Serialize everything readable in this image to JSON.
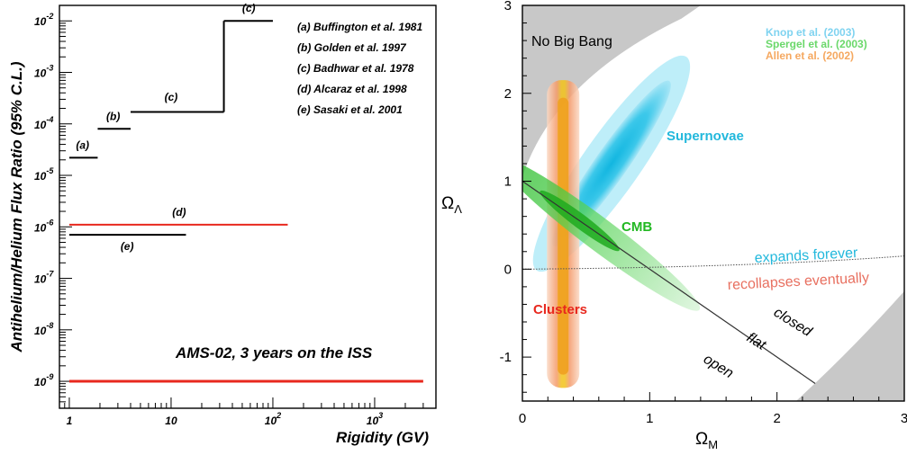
{
  "chart_data": [
    {
      "type": "line",
      "title": "",
      "xlabel": "Rigidity (GV)",
      "ylabel": "Antihelium/Helium Flux Ratio (95% C.L.)",
      "x_scale": "log",
      "y_scale": "log",
      "xlim": [
        0.8,
        4000
      ],
      "ylim": [
        3e-10,
        0.02
      ],
      "x_ticks": [
        {
          "value": 1,
          "label": "1"
        },
        {
          "value": 10,
          "label": "10"
        },
        {
          "value": 100,
          "label": "10",
          "exp": "2"
        },
        {
          "value": 1000,
          "label": "10",
          "exp": "3"
        }
      ],
      "y_ticks": [
        {
          "value": 1e-09,
          "label": "10",
          "exp": "-9"
        },
        {
          "value": 1e-08,
          "label": "10",
          "exp": "-8"
        },
        {
          "value": 1e-07,
          "label": "10",
          "exp": "-7"
        },
        {
          "value": 1e-06,
          "label": "10",
          "exp": "-6"
        },
        {
          "value": 1e-05,
          "label": "10",
          "exp": "-5"
        },
        {
          "value": 0.0001,
          "label": "10",
          "exp": "-4"
        },
        {
          "value": 0.001,
          "label": "10",
          "exp": "-3"
        },
        {
          "value": 0.01,
          "label": "10",
          "exp": "-2"
        }
      ],
      "legend": {
        "placement": "top-right",
        "entries": [
          "(a) Buffington et al. 1981",
          "(b) Golden et al. 1997",
          "(c) Badhwar et al. 1978",
          "(d) Alcaraz et al. 1998",
          "(e) Sasaki et al. 2001"
        ]
      },
      "series": [
        {
          "label": "(a)",
          "color": "#000000",
          "segments": [
            {
              "x": [
                1.0,
                1.9
              ],
              "y": 2.2e-05
            }
          ]
        },
        {
          "label": "(b)",
          "color": "#000000",
          "segments": [
            {
              "x": [
                1.9,
                4.0
              ],
              "y": 8e-05
            }
          ]
        },
        {
          "label": "(c)",
          "color": "#000000",
          "segments": [
            {
              "x": [
                4.0,
                33
              ],
              "y": 0.00017
            },
            {
              "x": [
                33,
                33
              ],
              "y_range": [
                0.00017,
                0.01
              ]
            },
            {
              "x": [
                33,
                100
              ],
              "y": 0.01
            }
          ],
          "label_positions": [
            {
              "x": 10,
              "y": 0.00028
            },
            {
              "x": 58,
              "y": 0.015
            }
          ]
        },
        {
          "label": "(d)",
          "color": "#e8281e",
          "segments": [
            {
              "x": [
                1.0,
                140
              ],
              "y": 1.1e-06
            }
          ]
        },
        {
          "label": "(e)",
          "color": "#000000",
          "segments": [
            {
              "x": [
                1.0,
                14
              ],
              "y": 7e-07
            }
          ]
        },
        {
          "label": "AMS-02, 3 years on the ISS",
          "color": "#e8281e",
          "segments": [
            {
              "x": [
                1.0,
                3000
              ],
              "y": 1e-09
            }
          ]
        }
      ],
      "annotation": "AMS-02, 3 years on the ISS"
    },
    {
      "type": "area",
      "title": "",
      "xlabel": "Ω",
      "xlabel_sub": "M",
      "ylabel": "Ω",
      "ylabel_sub": "Λ",
      "xlim": [
        0,
        3
      ],
      "ylim": [
        -1.5,
        3
      ],
      "x_ticks": [
        0,
        1,
        2,
        3
      ],
      "y_ticks": [
        -1,
        0,
        1,
        2,
        3
      ],
      "legend": {
        "placement": "top-right",
        "entries": [
          {
            "label": "Knop et al. (2003)",
            "color": "#7fd3f0"
          },
          {
            "label": "Spergel et al. (2003)",
            "color": "#7fe07f"
          },
          {
            "label": "Allen et al. (2002)",
            "color": "#f5a860"
          }
        ]
      },
      "regions": [
        {
          "name": "Supernovae",
          "color": "#22c4e8",
          "center": [
            0.7,
            1.2
          ],
          "orientation_deg": 55
        },
        {
          "name": "CMB",
          "color": "#33cc33",
          "center": [
            0.6,
            0.4
          ],
          "orientation_deg": -37
        },
        {
          "name": "Clusters",
          "color": "#e83c1e",
          "center": [
            0.32,
            -0.2
          ],
          "orientation_deg": 90
        },
        {
          "name": "No Big Bang",
          "color": "#c8c8c8"
        }
      ],
      "lines": [
        {
          "name": "flat",
          "points": [
            [
              0,
              1
            ],
            [
              2.3,
              -1.3
            ]
          ]
        },
        {
          "name": "expands forever / recollapses eventually",
          "points": [
            [
              0,
              0
            ],
            [
              3,
              0.15
            ]
          ]
        }
      ],
      "annotations": [
        "No Big Bang",
        "expands forever",
        "recollapses eventually",
        "closed",
        "flat",
        "open",
        "Supernovae",
        "CMB",
        "Clusters"
      ]
    }
  ]
}
